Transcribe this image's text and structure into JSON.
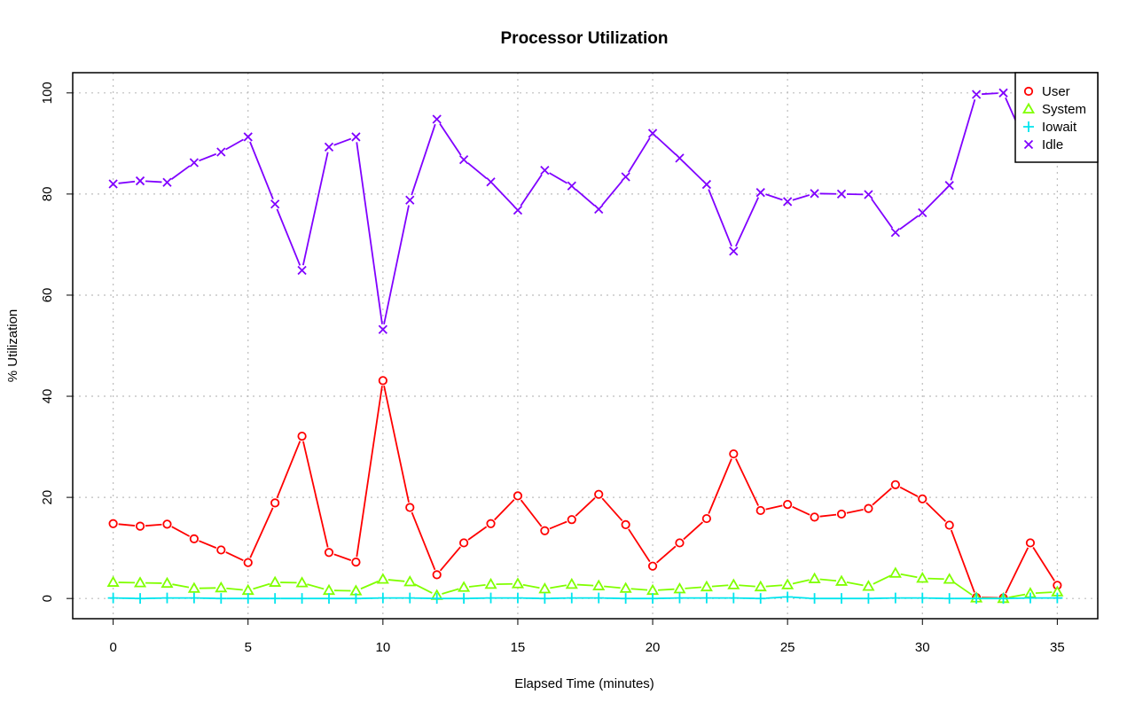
{
  "chart_data": {
    "type": "line",
    "title": "Processor Utilization",
    "xlabel": "Elapsed Time (minutes)",
    "ylabel": "% Utilization",
    "xlim": [
      -1.5,
      36.5
    ],
    "ylim": [
      -4,
      104
    ],
    "x_ticks": [
      0,
      5,
      10,
      15,
      20,
      25,
      30,
      35
    ],
    "y_ticks": [
      0,
      20,
      40,
      60,
      80,
      100
    ],
    "grid": true,
    "legend_position": "top-right",
    "x": [
      0,
      1,
      2,
      3,
      4,
      5,
      6,
      7,
      8,
      9,
      10,
      11,
      12,
      13,
      14,
      15,
      16,
      17,
      18,
      19,
      20,
      21,
      22,
      23,
      24,
      25,
      26,
      27,
      28,
      29,
      30,
      31,
      32,
      33,
      34,
      35
    ],
    "series": [
      {
        "name": "User",
        "color": "#ff0000",
        "marker": "circle",
        "values": [
          14.8,
          14.3,
          14.7,
          11.8,
          9.6,
          7.1,
          18.9,
          32.1,
          9.1,
          7.2,
          43.1,
          18.0,
          4.7,
          11.0,
          14.8,
          20.3,
          13.4,
          15.6,
          20.6,
          14.6,
          6.4,
          11.0,
          15.8,
          28.6,
          17.4,
          18.6,
          16.1,
          16.7,
          17.8,
          22.5,
          19.7,
          14.5,
          0.2,
          0.1,
          11.0,
          2.6
        ]
      },
      {
        "name": "System",
        "color": "#80ff00",
        "marker": "triangle",
        "values": [
          3.2,
          3.1,
          3.0,
          2.0,
          2.1,
          1.6,
          3.2,
          3.1,
          1.6,
          1.5,
          3.8,
          3.3,
          0.6,
          2.2,
          2.8,
          2.9,
          1.9,
          2.8,
          2.5,
          2.0,
          1.6,
          1.9,
          2.3,
          2.7,
          2.3,
          2.7,
          3.9,
          3.4,
          2.4,
          5.0,
          4.0,
          3.8,
          0.1,
          0.0,
          1.0,
          1.3
        ]
      },
      {
        "name": "Iowait",
        "color": "#00e5ee",
        "marker": "plus",
        "values": [
          0.1,
          0.0,
          0.1,
          0.1,
          0.0,
          0.0,
          0.0,
          0.0,
          0.0,
          0.0,
          0.1,
          0.1,
          0.0,
          0.0,
          0.1,
          0.1,
          0.0,
          0.1,
          0.1,
          0.0,
          0.0,
          0.1,
          0.1,
          0.1,
          0.0,
          0.3,
          0.0,
          0.0,
          0.0,
          0.1,
          0.1,
          0.0,
          0.0,
          0.0,
          0.1,
          0.1
        ]
      },
      {
        "name": "Idle",
        "color": "#8000ff",
        "marker": "x",
        "values": [
          82.0,
          82.6,
          82.3,
          86.2,
          88.3,
          91.3,
          78.0,
          64.9,
          89.3,
          91.3,
          53.2,
          78.8,
          94.8,
          86.8,
          82.4,
          76.8,
          84.7,
          81.6,
          77.0,
          83.4,
          92.0,
          87.1,
          81.9,
          68.7,
          80.3,
          78.5,
          80.1,
          80.0,
          79.9,
          72.4,
          76.3,
          81.7,
          99.7,
          100.0,
          88.0,
          96.1
        ]
      }
    ]
  }
}
